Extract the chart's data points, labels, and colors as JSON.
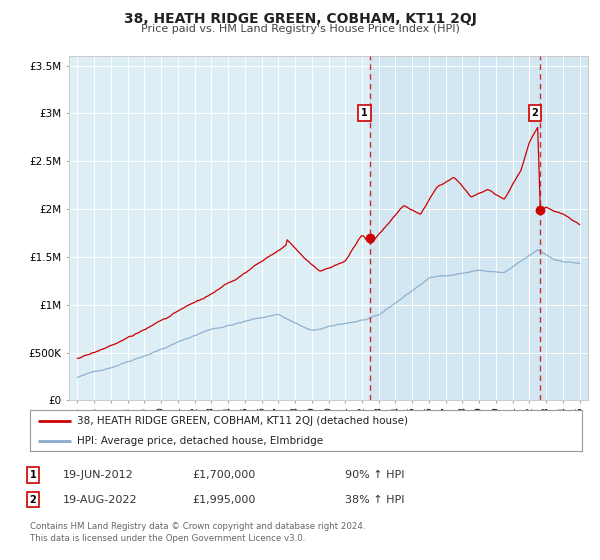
{
  "title": "38, HEATH RIDGE GREEN, COBHAM, KT11 2QJ",
  "subtitle": "Price paid vs. HM Land Registry's House Price Index (HPI)",
  "background_color": "#ffffff",
  "plot_bg_color": "#ddeef5",
  "plot_bg_color_right": "#ddeef5",
  "grid_color": "#ffffff",
  "red_color": "#cc0000",
  "blue_color": "#88aacc",
  "legend_label_red": "38, HEATH RIDGE GREEN, COBHAM, KT11 2QJ (detached house)",
  "legend_label_blue": "HPI: Average price, detached house, Elmbridge",
  "annotation1_date": "19-JUN-2012",
  "annotation1_price": "£1,700,000",
  "annotation1_hpi": "90% ↑ HPI",
  "annotation2_date": "19-AUG-2022",
  "annotation2_price": "£1,995,000",
  "annotation2_hpi": "38% ↑ HPI",
  "vline1_x": 2012.46,
  "vline2_x": 2022.63,
  "sale1_x": 2012.46,
  "sale1_y": 1700000,
  "sale2_x": 2022.63,
  "sale2_y": 1995000,
  "ylim": [
    0,
    3600000
  ],
  "xlim": [
    1994.5,
    2025.5
  ],
  "yticks": [
    0,
    500000,
    1000000,
    1500000,
    2000000,
    2500000,
    3000000,
    3500000
  ],
  "ytick_labels": [
    "£0",
    "£500K",
    "£1M",
    "£1.5M",
    "£2M",
    "£2.5M",
    "£3M",
    "£3.5M"
  ],
  "footer_line1": "Contains HM Land Registry data © Crown copyright and database right 2024.",
  "footer_line2": "This data is licensed under the Open Government Licence v3.0."
}
